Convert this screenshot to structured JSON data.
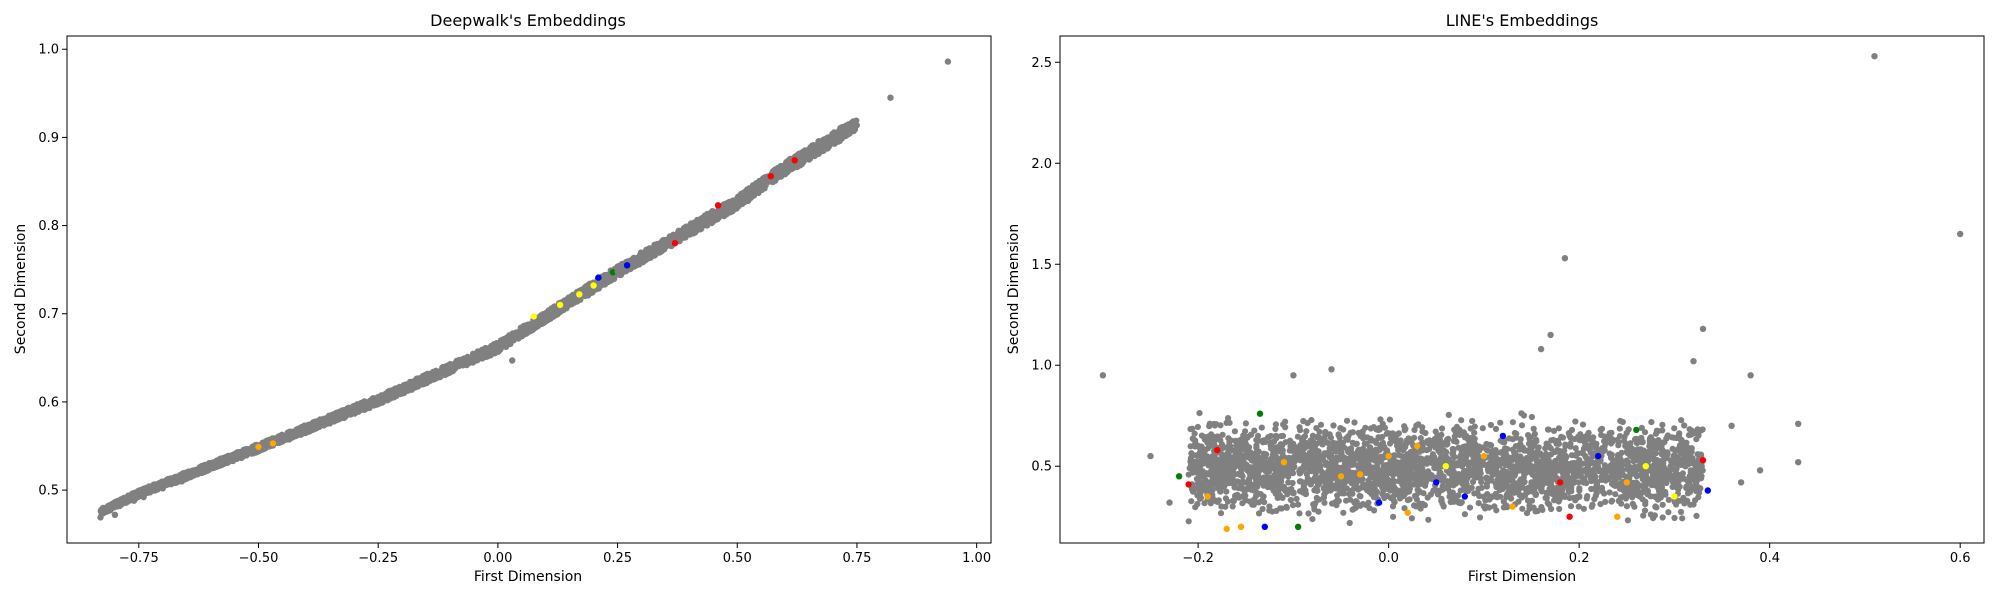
{
  "figure": {
    "charts": [
      {
        "id": "deepwalk",
        "type": "scatter",
        "title": "Deepwalk's Embeddings",
        "xlabel": "First Dimension",
        "ylabel": "Second Dimension",
        "xlim": [
          -0.9,
          1.03
        ],
        "ylim": [
          0.44,
          1.015
        ],
        "xticks": [
          -0.75,
          -0.5,
          -0.25,
          0.0,
          0.25,
          0.5,
          0.75,
          1.0
        ],
        "xtick_labels": [
          "−0.75",
          "−0.50",
          "−0.25",
          "0.00",
          "0.25",
          "0.50",
          "0.75",
          "1.00"
        ],
        "yticks": [
          0.5,
          0.6,
          0.7,
          0.8,
          0.9,
          1.0
        ],
        "ytick_labels": [
          "0.5",
          "0.6",
          "0.7",
          "0.8",
          "0.9",
          "1.0"
        ]
      },
      {
        "id": "line",
        "type": "scatter",
        "title": "LINE's Embeddings",
        "xlabel": "First Dimension",
        "ylabel": "Second Dimension",
        "xlim": [
          -0.345,
          0.625
        ],
        "ylim": [
          0.12,
          2.63
        ],
        "xticks": [
          -0.2,
          0.0,
          0.2,
          0.4,
          0.6
        ],
        "xtick_labels": [
          "−0.2",
          "0.0",
          "0.2",
          "0.4",
          "0.6"
        ],
        "yticks": [
          0.5,
          1.0,
          1.5,
          2.0,
          2.5
        ],
        "ytick_labels": [
          "0.5",
          "1.0",
          "1.5",
          "2.0",
          "2.5"
        ]
      }
    ]
  },
  "chart_data": [
    {
      "type": "scatter",
      "title": "Deepwalk's Embeddings",
      "xlabel": "First Dimension",
      "ylabel": "Second Dimension",
      "xlim": [
        -0.9,
        1.03
      ],
      "ylim": [
        0.44,
        1.015
      ],
      "grid": false,
      "colors": {
        "gray": "#808080",
        "red": "#ff0000",
        "blue": "#0000ff",
        "yellow": "#ffff00",
        "green": "#008000",
        "orange": "#ffa500"
      },
      "curve_anchors": [
        [
          -0.83,
          0.475
        ],
        [
          -0.75,
          0.496
        ],
        [
          -0.5,
          0.548
        ],
        [
          -0.25,
          0.602
        ],
        [
          0.0,
          0.662
        ],
        [
          0.25,
          0.748
        ],
        [
          0.5,
          0.826
        ],
        [
          0.6,
          0.865
        ],
        [
          0.75,
          0.915
        ]
      ],
      "points": [
        {
          "x": -0.83,
          "y": 0.469,
          "c": "gray"
        },
        {
          "x": -0.81,
          "y": 0.478,
          "c": "gray"
        },
        {
          "x": -0.8,
          "y": 0.472,
          "c": "gray"
        },
        {
          "x": -0.79,
          "y": 0.482,
          "c": "gray"
        },
        {
          "x": -0.76,
          "y": 0.488,
          "c": "gray"
        },
        {
          "x": -0.74,
          "y": 0.492,
          "c": "gray"
        },
        {
          "x": -0.7,
          "y": 0.502,
          "c": "gray"
        },
        {
          "x": -0.66,
          "y": 0.51,
          "c": "gray"
        },
        {
          "x": -0.62,
          "y": 0.52,
          "c": "gray"
        },
        {
          "x": -0.58,
          "y": 0.53,
          "c": "gray"
        },
        {
          "x": -0.55,
          "y": 0.538,
          "c": "gray"
        },
        {
          "x": -0.5,
          "y": 0.549,
          "c": "orange"
        },
        {
          "x": -0.47,
          "y": 0.553,
          "c": "orange"
        },
        {
          "x": -0.45,
          "y": 0.558,
          "c": "gray"
        },
        {
          "x": -0.4,
          "y": 0.57,
          "c": "gray"
        },
        {
          "x": -0.35,
          "y": 0.58,
          "c": "gray"
        },
        {
          "x": -0.3,
          "y": 0.591,
          "c": "gray"
        },
        {
          "x": -0.25,
          "y": 0.602,
          "c": "gray"
        },
        {
          "x": -0.2,
          "y": 0.613,
          "c": "gray"
        },
        {
          "x": -0.15,
          "y": 0.624,
          "c": "gray"
        },
        {
          "x": -0.1,
          "y": 0.636,
          "c": "gray"
        },
        {
          "x": -0.05,
          "y": 0.649,
          "c": "gray"
        },
        {
          "x": 0.0,
          "y": 0.662,
          "c": "gray"
        },
        {
          "x": 0.03,
          "y": 0.647,
          "c": "gray"
        },
        {
          "x": 0.05,
          "y": 0.676,
          "c": "gray"
        },
        {
          "x": 0.075,
          "y": 0.697,
          "c": "yellow"
        },
        {
          "x": 0.1,
          "y": 0.7,
          "c": "gray"
        },
        {
          "x": 0.13,
          "y": 0.71,
          "c": "yellow"
        },
        {
          "x": 0.15,
          "y": 0.716,
          "c": "gray"
        },
        {
          "x": 0.17,
          "y": 0.722,
          "c": "yellow"
        },
        {
          "x": 0.2,
          "y": 0.732,
          "c": "yellow"
        },
        {
          "x": 0.21,
          "y": 0.741,
          "c": "blue"
        },
        {
          "x": 0.24,
          "y": 0.747,
          "c": "green"
        },
        {
          "x": 0.25,
          "y": 0.748,
          "c": "gray"
        },
        {
          "x": 0.27,
          "y": 0.755,
          "c": "blue"
        },
        {
          "x": 0.3,
          "y": 0.762,
          "c": "gray"
        },
        {
          "x": 0.35,
          "y": 0.78,
          "c": "gray"
        },
        {
          "x": 0.37,
          "y": 0.78,
          "c": "red"
        },
        {
          "x": 0.4,
          "y": 0.795,
          "c": "gray"
        },
        {
          "x": 0.45,
          "y": 0.813,
          "c": "gray"
        },
        {
          "x": 0.46,
          "y": 0.823,
          "c": "red"
        },
        {
          "x": 0.5,
          "y": 0.826,
          "c": "gray"
        },
        {
          "x": 0.55,
          "y": 0.842,
          "c": "gray"
        },
        {
          "x": 0.57,
          "y": 0.856,
          "c": "red"
        },
        {
          "x": 0.6,
          "y": 0.866,
          "c": "gray"
        },
        {
          "x": 0.62,
          "y": 0.874,
          "c": "red"
        },
        {
          "x": 0.65,
          "y": 0.876,
          "c": "gray"
        },
        {
          "x": 0.69,
          "y": 0.9,
          "c": "gray"
        },
        {
          "x": 0.71,
          "y": 0.905,
          "c": "gray"
        },
        {
          "x": 0.72,
          "y": 0.91,
          "c": "gray"
        },
        {
          "x": 0.74,
          "y": 0.917,
          "c": "gray"
        },
        {
          "x": 0.82,
          "y": 0.945,
          "c": "gray"
        },
        {
          "x": 0.94,
          "y": 0.986,
          "c": "gray"
        }
      ]
    },
    {
      "type": "scatter",
      "title": "LINE's Embeddings",
      "xlabel": "First Dimension",
      "ylabel": "Second Dimension",
      "xlim": [
        -0.345,
        0.625
      ],
      "ylim": [
        0.12,
        2.63
      ],
      "grid": false,
      "colors": {
        "gray": "#808080",
        "red": "#ff0000",
        "blue": "#0000ff",
        "yellow": "#ffff00",
        "green": "#008000",
        "orange": "#ffa500"
      },
      "cluster": {
        "x_range": [
          -0.21,
          0.33
        ],
        "y_range": [
          0.2,
          0.78
        ],
        "center_y": 0.5
      },
      "points": [
        {
          "x": -0.3,
          "y": 0.95,
          "c": "gray"
        },
        {
          "x": -0.25,
          "y": 0.55,
          "c": "gray"
        },
        {
          "x": -0.23,
          "y": 0.32,
          "c": "gray"
        },
        {
          "x": -0.22,
          "y": 0.45,
          "c": "green"
        },
        {
          "x": -0.21,
          "y": 0.41,
          "c": "red"
        },
        {
          "x": -0.2,
          "y": 0.6,
          "c": "gray"
        },
        {
          "x": -0.19,
          "y": 0.35,
          "c": "orange"
        },
        {
          "x": -0.18,
          "y": 0.58,
          "c": "red"
        },
        {
          "x": -0.17,
          "y": 0.19,
          "c": "orange"
        },
        {
          "x": -0.155,
          "y": 0.2,
          "c": "orange"
        },
        {
          "x": -0.14,
          "y": 0.45,
          "c": "gray"
        },
        {
          "x": -0.135,
          "y": 0.76,
          "c": "green"
        },
        {
          "x": -0.13,
          "y": 0.2,
          "c": "blue"
        },
        {
          "x": -0.11,
          "y": 0.52,
          "c": "orange"
        },
        {
          "x": -0.1,
          "y": 0.95,
          "c": "gray"
        },
        {
          "x": -0.095,
          "y": 0.2,
          "c": "green"
        },
        {
          "x": -0.06,
          "y": 0.98,
          "c": "gray"
        },
        {
          "x": -0.05,
          "y": 0.45,
          "c": "orange"
        },
        {
          "x": -0.03,
          "y": 0.46,
          "c": "orange"
        },
        {
          "x": -0.01,
          "y": 0.32,
          "c": "blue"
        },
        {
          "x": 0.0,
          "y": 0.55,
          "c": "orange"
        },
        {
          "x": 0.02,
          "y": 0.27,
          "c": "orange"
        },
        {
          "x": 0.03,
          "y": 0.6,
          "c": "orange"
        },
        {
          "x": 0.05,
          "y": 0.42,
          "c": "blue"
        },
        {
          "x": 0.06,
          "y": 0.5,
          "c": "yellow"
        },
        {
          "x": 0.08,
          "y": 0.35,
          "c": "blue"
        },
        {
          "x": 0.1,
          "y": 0.55,
          "c": "orange"
        },
        {
          "x": 0.12,
          "y": 0.65,
          "c": "blue"
        },
        {
          "x": 0.13,
          "y": 0.3,
          "c": "orange"
        },
        {
          "x": 0.15,
          "y": 0.42,
          "c": "gray"
        },
        {
          "x": 0.16,
          "y": 1.08,
          "c": "gray"
        },
        {
          "x": 0.17,
          "y": 1.15,
          "c": "gray"
        },
        {
          "x": 0.18,
          "y": 0.42,
          "c": "red"
        },
        {
          "x": 0.185,
          "y": 1.53,
          "c": "gray"
        },
        {
          "x": 0.19,
          "y": 0.25,
          "c": "red"
        },
        {
          "x": 0.22,
          "y": 0.55,
          "c": "blue"
        },
        {
          "x": 0.24,
          "y": 0.25,
          "c": "orange"
        },
        {
          "x": 0.25,
          "y": 0.42,
          "c": "orange"
        },
        {
          "x": 0.26,
          "y": 0.68,
          "c": "green"
        },
        {
          "x": 0.27,
          "y": 0.5,
          "c": "yellow"
        },
        {
          "x": 0.28,
          "y": 0.3,
          "c": "gray"
        },
        {
          "x": 0.3,
          "y": 0.35,
          "c": "yellow"
        },
        {
          "x": 0.32,
          "y": 1.02,
          "c": "gray"
        },
        {
          "x": 0.33,
          "y": 1.18,
          "c": "gray"
        },
        {
          "x": 0.33,
          "y": 0.53,
          "c": "red"
        },
        {
          "x": 0.335,
          "y": 0.38,
          "c": "blue"
        },
        {
          "x": 0.36,
          "y": 0.7,
          "c": "gray"
        },
        {
          "x": 0.37,
          "y": 0.42,
          "c": "gray"
        },
        {
          "x": 0.38,
          "y": 0.95,
          "c": "gray"
        },
        {
          "x": 0.39,
          "y": 0.48,
          "c": "gray"
        },
        {
          "x": 0.43,
          "y": 0.71,
          "c": "gray"
        },
        {
          "x": 0.43,
          "y": 0.52,
          "c": "gray"
        },
        {
          "x": 0.51,
          "y": 2.53,
          "c": "gray"
        },
        {
          "x": 0.6,
          "y": 1.65,
          "c": "gray"
        }
      ]
    }
  ]
}
